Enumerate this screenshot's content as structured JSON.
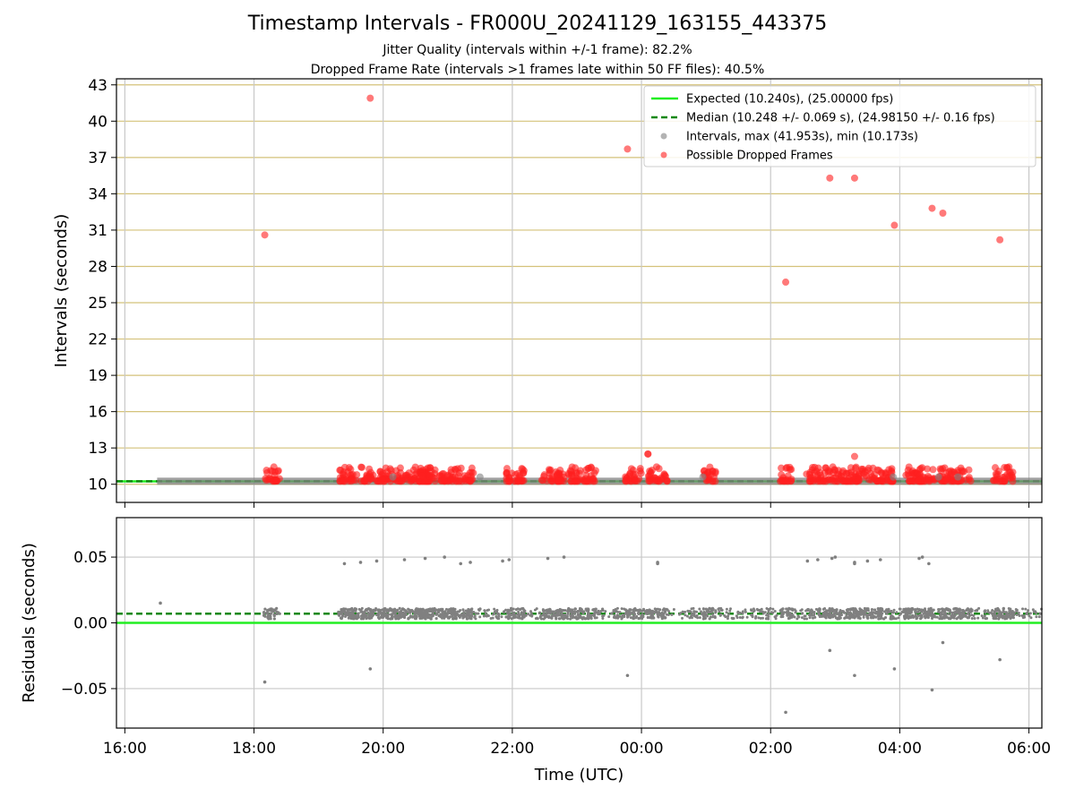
{
  "title": "Timestamp Intervals - FR000U_20241129_163155_443375",
  "subtitle_1": "Jitter Quality (intervals within +/-1 frame): 82.2%",
  "subtitle_2": "Dropped Frame Rate (intervals >1 frames late within 50 FF files): 40.5%",
  "colors": {
    "expected": "#22ee22",
    "median": "#118811",
    "intervals": "#808080",
    "dropped": "#ff2020",
    "major_grid": "#d4c27a",
    "grid": "#c8c8c8"
  },
  "chart_data": [
    {
      "type": "scatter",
      "title": "Timestamp Intervals - FR000U_20241129_163155_443375",
      "xlabel": "",
      "ylabel": "Intervals (seconds)",
      "xlim_hours": [
        15.87,
        30.2
      ],
      "ylim": [
        8.5,
        43.5
      ],
      "yticks": [
        10,
        13,
        16,
        19,
        22,
        25,
        28,
        31,
        34,
        37,
        40,
        43
      ],
      "grid": true,
      "legend_position": "top-right",
      "expected_value": 10.24,
      "median_value": 10.248,
      "legend": [
        "Expected (10.240s), (25.00000 fps)",
        "Median (10.248 +/- 0.069 s), (24.98150 +/- 0.16 fps)",
        "Intervals, max (41.953s), min (10.173s)",
        "Possible Dropped Frames"
      ],
      "series": [
        {
          "name": "Possible Dropped Frames",
          "x_time": [
            "18:10",
            "19:48",
            "23:47",
            "00:06",
            "02:14",
            "02:55",
            "03:18",
            "03:55",
            "04:30",
            "04:40",
            "05:33",
            "03:18",
            "00:06"
          ],
          "y": [
            30.6,
            41.9,
            37.7,
            12.5,
            26.7,
            35.3,
            35.3,
            31.4,
            32.8,
            32.4,
            30.2,
            12.3,
            12.5
          ]
        }
      ],
      "dense_clusters_note": "Many intervals near 10.2-11.7 s between 16:30 and 06:10"
    },
    {
      "type": "scatter",
      "xlabel": "Time (UTC)",
      "ylabel": "Residuals (seconds)",
      "xlim_hours": [
        15.87,
        30.2
      ],
      "ylim": [
        -0.08,
        0.08
      ],
      "yticks": [
        0.05,
        0.0,
        -0.05
      ],
      "ytick_labels": [
        "0.05",
        "0.00",
        "−0.05"
      ],
      "xtick_labels": [
        "16:00",
        "18:00",
        "20:00",
        "22:00",
        "00:00",
        "02:00",
        "04:00",
        "06:00"
      ],
      "xtick_hours": [
        16,
        18,
        20,
        22,
        24,
        26,
        28,
        30
      ],
      "zero_line": 0.0,
      "median_residual": 0.007,
      "grid": true,
      "series": [
        {
          "name": "",
          "x_time": [
            "18:10",
            "19:48",
            "23:47",
            "02:14",
            "02:55",
            "03:18",
            "03:55",
            "04:30",
            "04:40",
            "05:33",
            "16:33"
          ],
          "y": [
            -0.045,
            -0.035,
            -0.04,
            -0.068,
            -0.021,
            -0.04,
            -0.035,
            -0.051,
            -0.015,
            -0.028,
            0.015
          ]
        }
      ]
    }
  ]
}
